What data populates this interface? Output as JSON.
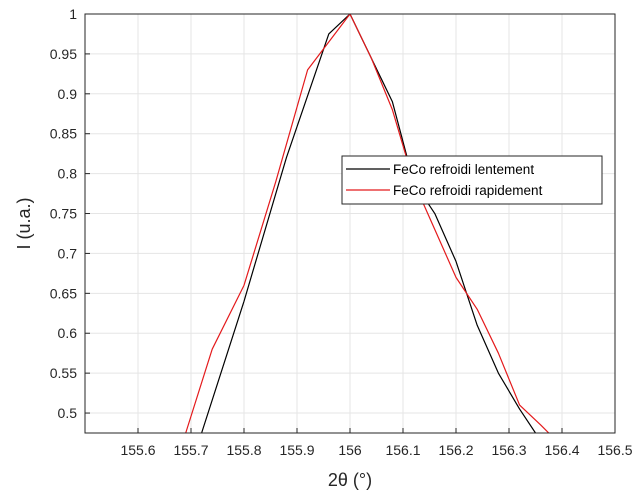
{
  "chart_data": {
    "type": "line",
    "title": "",
    "xlabel": "2θ (°)",
    "ylabel": "I (u.a.)",
    "xlim": [
      155.5,
      156.5
    ],
    "ylim": [
      0.475,
      1.0
    ],
    "x_ticks": [
      "155.6",
      "155.7",
      "155.8",
      "155.9",
      "156",
      "156.1",
      "156.2",
      "156.3",
      "156.4",
      "156.5"
    ],
    "y_ticks": [
      "0.5",
      "0.55",
      "0.6",
      "0.65",
      "0.7",
      "0.75",
      "0.8",
      "0.85",
      "0.9",
      "0.95",
      "1"
    ],
    "grid": true,
    "legend_position": "right",
    "series": [
      {
        "name": "FeCo refroidi lentement",
        "color": "#000000",
        "x": [
          155.7,
          155.72,
          155.8,
          155.88,
          155.96,
          156.0,
          156.04,
          156.08,
          156.12,
          156.16,
          156.2,
          156.24,
          156.28,
          156.32,
          156.35
        ],
        "y": [
          0.45,
          0.475,
          0.64,
          0.82,
          0.975,
          1.0,
          0.945,
          0.89,
          0.79,
          0.75,
          0.69,
          0.61,
          0.55,
          0.505,
          0.475
        ]
      },
      {
        "name": "FeCo refroidi rapidement",
        "color": "#e41a1c",
        "x": [
          155.68,
          155.69,
          155.74,
          155.8,
          155.86,
          155.92,
          156.0,
          156.04,
          156.08,
          156.12,
          156.16,
          156.2,
          156.24,
          156.28,
          156.32,
          156.36,
          156.375
        ],
        "y": [
          0.45,
          0.475,
          0.58,
          0.66,
          0.79,
          0.93,
          1.0,
          0.945,
          0.88,
          0.79,
          0.73,
          0.67,
          0.63,
          0.575,
          0.51,
          0.485,
          0.475
        ]
      }
    ]
  }
}
